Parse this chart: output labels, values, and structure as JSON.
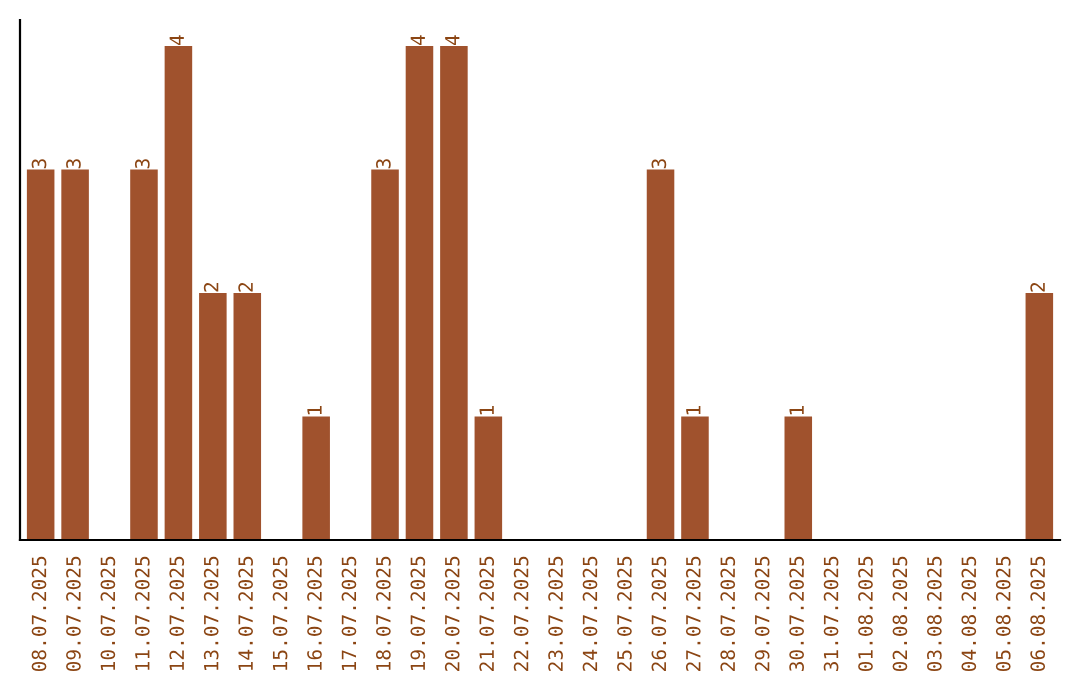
{
  "chart_data": {
    "type": "bar",
    "categories": [
      "08.07.2025",
      "09.07.2025",
      "10.07.2025",
      "11.07.2025",
      "12.07.2025",
      "13.07.2025",
      "14.07.2025",
      "15.07.2025",
      "16.07.2025",
      "17.07.2025",
      "18.07.2025",
      "19.07.2025",
      "20.07.2025",
      "21.07.2025",
      "22.07.2025",
      "23.07.2025",
      "24.07.2025",
      "25.07.2025",
      "26.07.2025",
      "27.07.2025",
      "28.07.2025",
      "29.07.2025",
      "30.07.2025",
      "31.07.2025",
      "01.08.2025",
      "02.08.2025",
      "03.08.2025",
      "04.08.2025",
      "05.08.2025",
      "06.08.2025"
    ],
    "values": [
      3,
      3,
      0,
      3,
      4,
      2,
      2,
      0,
      1,
      0,
      3,
      4,
      4,
      1,
      0,
      0,
      0,
      0,
      3,
      1,
      0,
      0,
      1,
      0,
      0,
      0,
      0,
      0,
      0,
      2
    ],
    "value_labels": [
      "3",
      "3",
      null,
      "3",
      "4",
      "2",
      "2",
      null,
      "1",
      null,
      "3",
      "4",
      "4",
      "1",
      null,
      null,
      null,
      null,
      "3",
      "1",
      null,
      null,
      "1",
      null,
      null,
      null,
      null,
      null,
      null,
      "2"
    ],
    "color": "#a0522d",
    "tick_labels": "x",
    "grid": false,
    "legend": false
  }
}
